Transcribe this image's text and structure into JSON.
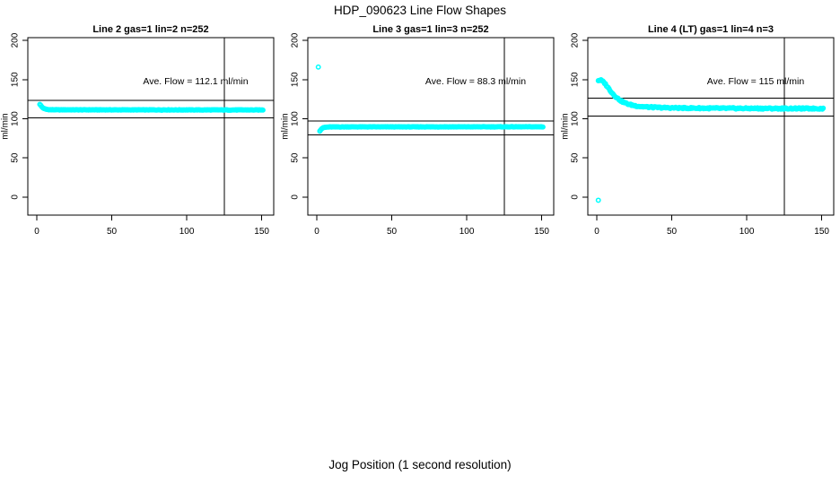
{
  "page": {
    "title": "HDP_090623  Line Flow Shapes",
    "xlabel": "Jog Position (1 second resolution)",
    "ylabel": "ml/min",
    "point_color": "#00FFFF",
    "axis_color": "#000000",
    "background_color": "#FFFFFF"
  },
  "chart_data": [
    {
      "type": "scatter",
      "title": "Line 2 gas=1 lin=2 n=252",
      "annotation": "Ave. Flow =  112.1  ml/min",
      "ave_flow": 112.1,
      "n_label": 252,
      "xlim": [
        -6,
        158
      ],
      "ylim": [
        -23,
        203.5
      ],
      "x_ticks": [
        0,
        50,
        100,
        150
      ],
      "y_ticks": [
        0,
        50,
        100,
        150,
        200
      ],
      "hlines": [
        123.3,
        100.9
      ],
      "vline_x": 125,
      "marker": "open-circle",
      "jitter": 0.3,
      "seed": 1,
      "x_step": 0.6,
      "x_end": 151,
      "trend": [
        [
          2,
          118.5
        ],
        [
          2.6,
          117.0
        ],
        [
          3.2,
          115.5
        ],
        [
          4,
          114.0
        ],
        [
          5,
          112.8
        ],
        [
          6,
          112.2
        ],
        [
          7,
          111.8
        ],
        [
          9,
          111.5
        ],
        [
          15,
          111.4
        ],
        [
          60,
          111.3
        ],
        [
          151,
          111.2
        ]
      ],
      "outliers": []
    },
    {
      "type": "scatter",
      "title": "Line 3 gas=1 lin=3 n=252",
      "annotation": "Ave. Flow =  88.3  ml/min",
      "ave_flow": 88.3,
      "n_label": 252,
      "xlim": [
        -6,
        158
      ],
      "ylim": [
        -23,
        203.5
      ],
      "x_ticks": [
        0,
        50,
        100,
        150
      ],
      "y_ticks": [
        0,
        50,
        100,
        150,
        200
      ],
      "hlines": [
        97.1,
        79.5
      ],
      "vline_x": 125,
      "marker": "open-circle",
      "jitter": 0.3,
      "seed": 2,
      "x_step": 0.6,
      "x_end": 151,
      "trend": [
        [
          2,
          84.5
        ],
        [
          2.6,
          86.0
        ],
        [
          3.2,
          87.3
        ],
        [
          4,
          88.2
        ],
        [
          5,
          88.9
        ],
        [
          6.5,
          89.3
        ],
        [
          9,
          89.5
        ],
        [
          20,
          89.6
        ],
        [
          151,
          89.7
        ]
      ],
      "outliers": [
        [
          1,
          166
        ]
      ]
    },
    {
      "type": "scatter",
      "title": "Line 4 (LT) gas=1 lin=4 n=3",
      "annotation": "Ave. Flow =  115  ml/min",
      "ave_flow": 115,
      "n_label": 3,
      "xlim": [
        -6,
        158
      ],
      "ylim": [
        -23,
        203.5
      ],
      "x_ticks": [
        0,
        50,
        100,
        150
      ],
      "y_ticks": [
        0,
        50,
        100,
        150,
        200
      ],
      "hlines": [
        126.5,
        103.5
      ],
      "vline_x": 125,
      "marker": "open-circle",
      "jitter": 0.9,
      "seed": 3,
      "x_step": 0.6,
      "x_end": 151,
      "trend": [
        [
          1,
          149
        ],
        [
          2.5,
          149.3
        ],
        [
          3,
          149
        ],
        [
          4,
          147.5
        ],
        [
          5,
          146
        ],
        [
          6,
          143.5
        ],
        [
          7,
          141
        ],
        [
          8,
          138.5
        ],
        [
          9,
          136
        ],
        [
          10,
          133.5
        ],
        [
          11,
          131.2
        ],
        [
          12,
          129.2
        ],
        [
          13,
          127.4
        ],
        [
          14,
          125.8
        ],
        [
          15,
          124.3
        ],
        [
          16,
          123
        ],
        [
          17,
          121.9
        ],
        [
          18,
          120.9
        ],
        [
          19,
          120
        ],
        [
          20,
          119.3
        ],
        [
          22,
          118.1
        ],
        [
          24,
          117.2
        ],
        [
          26,
          116.5
        ],
        [
          28,
          115.9
        ],
        [
          30,
          115.5
        ],
        [
          34,
          114.9
        ],
        [
          38,
          114.5
        ],
        [
          44,
          114.1
        ],
        [
          50,
          113.9
        ],
        [
          60,
          113.6
        ],
        [
          75,
          113.4
        ],
        [
          95,
          113.2
        ],
        [
          120,
          113.1
        ],
        [
          151,
          113
        ]
      ],
      "outliers": [
        [
          1,
          -4
        ]
      ]
    }
  ]
}
